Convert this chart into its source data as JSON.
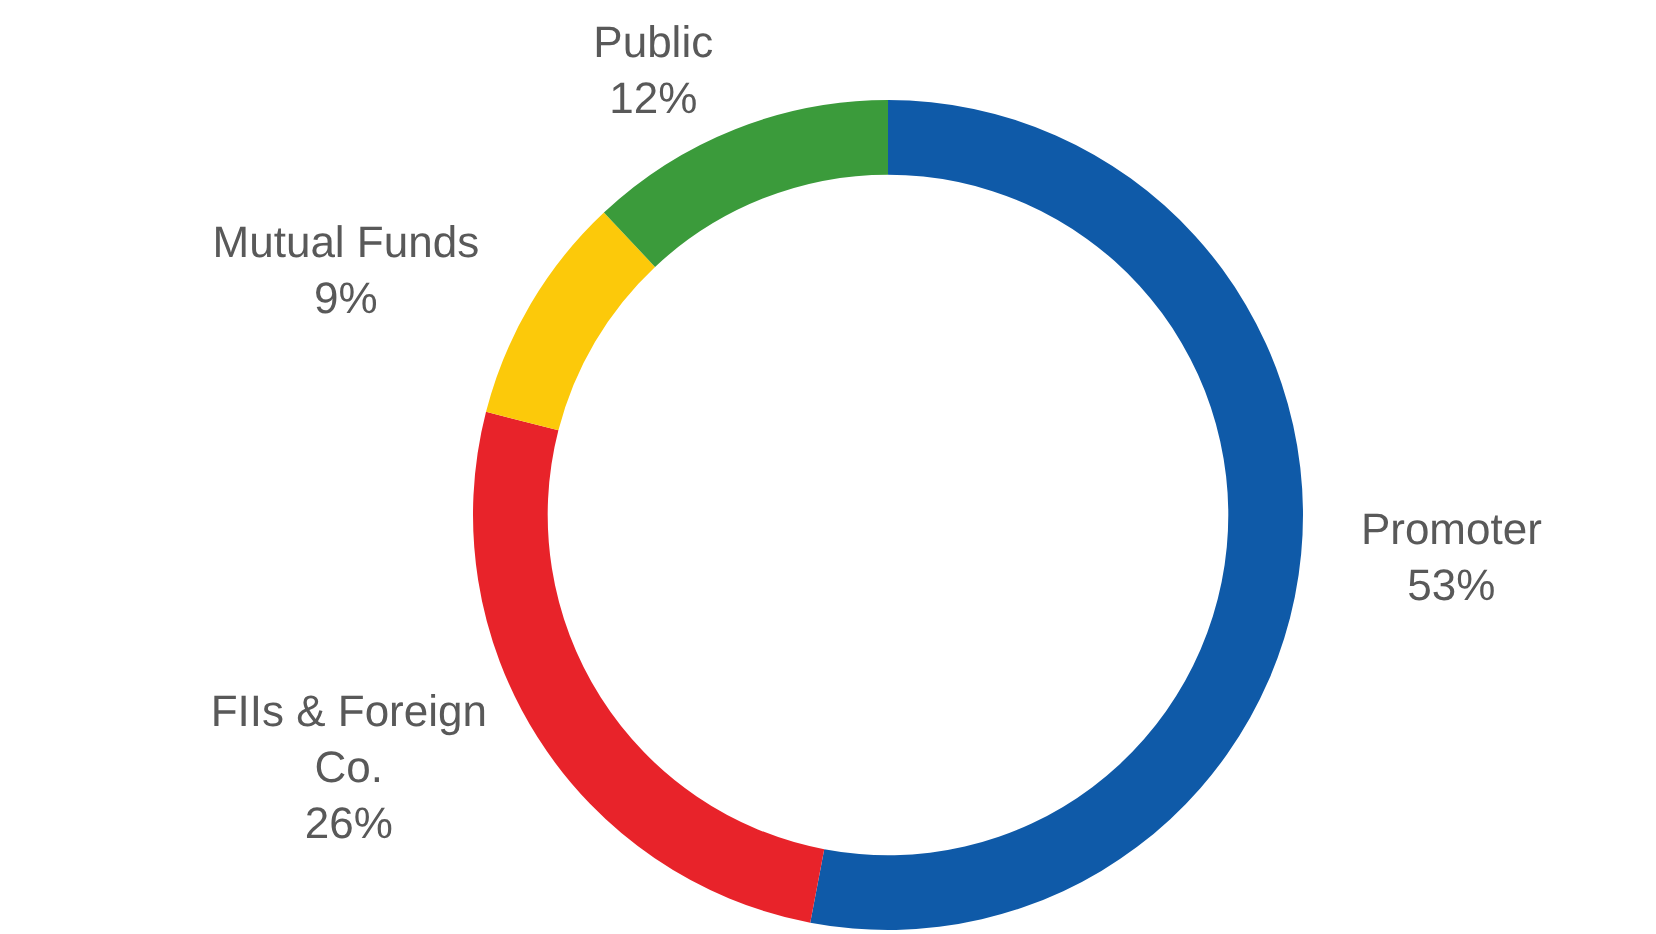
{
  "chart_data": {
    "type": "donut",
    "categories": [
      "Promoter",
      "FIIs & Foreign Co.",
      "Mutual Funds",
      "Public"
    ],
    "values": [
      53,
      26,
      9,
      12
    ],
    "value_labels": [
      "53%",
      "26%",
      "9%",
      "12%"
    ],
    "colors": [
      "#0f5aa8",
      "#e8232a",
      "#fcc90a",
      "#3b9b3b"
    ],
    "legend": false
  }
}
